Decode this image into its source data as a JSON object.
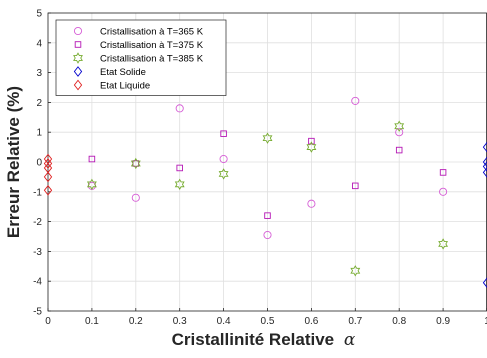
{
  "chart_data": {
    "type": "scatter",
    "title": "",
    "xlabel": "Cristallinité Relative",
    "xlabel_symbol": "α",
    "ylabel": "Erreur Relative (%)",
    "xlim": [
      0,
      1
    ],
    "ylim": [
      -5,
      5
    ],
    "x_ticks": [
      0,
      0.1,
      0.2,
      0.3,
      0.4,
      0.5,
      0.6,
      0.7,
      0.8,
      0.9,
      1
    ],
    "x_tick_labels": [
      "0",
      "0.1",
      "0.2",
      "0.3",
      "0.4",
      "0.5",
      "0.6",
      "0.7",
      "0.8",
      "0.9",
      "1"
    ],
    "y_ticks": [
      -5,
      -4,
      -3,
      -2,
      -1,
      0,
      1,
      2,
      3,
      4,
      5
    ],
    "y_tick_labels": [
      "-5",
      "-4",
      "-3",
      "-2",
      "-1",
      "0",
      "1",
      "2",
      "3",
      "4",
      "5"
    ],
    "grid": true,
    "legend_position": "top-left",
    "series": [
      {
        "name": "Cristallisation à T=365 K",
        "marker": "circle",
        "color": "#d65ed6",
        "points": [
          [
            0.1,
            -0.8
          ],
          [
            0.2,
            -1.2
          ],
          [
            0.3,
            1.8
          ],
          [
            0.4,
            0.1
          ],
          [
            0.5,
            -2.45
          ],
          [
            0.6,
            -1.4
          ],
          [
            0.7,
            2.05
          ],
          [
            0.8,
            1.0
          ],
          [
            0.9,
            -1.0
          ]
        ]
      },
      {
        "name": "Cristallisation à T=375 K",
        "marker": "square",
        "color": "#b517b5",
        "points": [
          [
            0.1,
            0.1
          ],
          [
            0.2,
            -0.05
          ],
          [
            0.3,
            -0.2
          ],
          [
            0.4,
            0.95
          ],
          [
            0.5,
            -1.8
          ],
          [
            0.6,
            0.7
          ],
          [
            0.7,
            -0.8
          ],
          [
            0.8,
            0.4
          ],
          [
            0.9,
            -0.35
          ]
        ]
      },
      {
        "name": "Cristallisation à T=385 K",
        "marker": "hexagram",
        "color": "#77ac30",
        "points": [
          [
            0.1,
            -0.75
          ],
          [
            0.2,
            -0.05
          ],
          [
            0.3,
            -0.75
          ],
          [
            0.4,
            -0.4
          ],
          [
            0.5,
            0.8
          ],
          [
            0.6,
            0.5
          ],
          [
            0.7,
            -3.65
          ],
          [
            0.8,
            1.2
          ],
          [
            0.9,
            -2.75
          ]
        ]
      },
      {
        "name": "Etat Solide",
        "marker": "diamond",
        "color": "#0000cc",
        "points": [
          [
            1,
            0.5
          ],
          [
            1,
            0.0
          ],
          [
            1,
            -0.15
          ],
          [
            1,
            -0.35
          ],
          [
            1,
            -4.05
          ]
        ]
      },
      {
        "name": "Etat Liquide",
        "marker": "diamond",
        "color": "#e02020",
        "points": [
          [
            0,
            0.1
          ],
          [
            0,
            -0.05
          ],
          [
            0,
            -0.2
          ],
          [
            0,
            -0.5
          ],
          [
            0,
            -0.95
          ]
        ]
      }
    ]
  }
}
